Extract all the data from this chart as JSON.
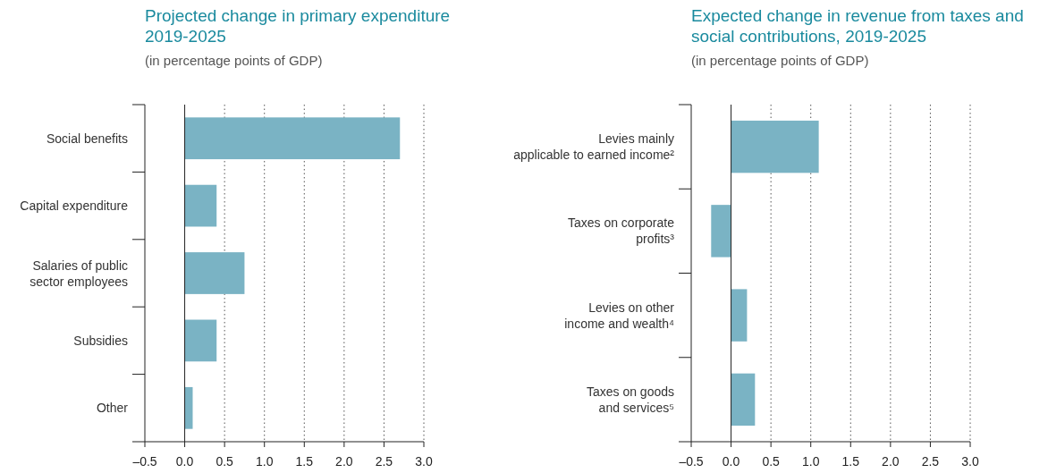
{
  "chart_data": [
    {
      "type": "bar",
      "orientation": "horizontal",
      "title": "Projected change in primary expenditure 2019-2025",
      "subtitle": "(in percentage points of GDP)",
      "categories": [
        "Social benefits",
        "Capital expenditure",
        "Salaries of public sector employees",
        "Subsidies",
        "Other"
      ],
      "values": [
        2.7,
        0.4,
        0.75,
        0.4,
        0.1
      ],
      "color": "#7ab3c4",
      "xlim": [
        -0.5,
        3.0
      ],
      "xticks": [
        {
          "value": -0.5,
          "label": "–0.5"
        },
        {
          "value": 0,
          "label": "0.0"
        },
        {
          "value": 0.5,
          "label": "0.5"
        },
        {
          "value": 1,
          "label": "1.0"
        },
        {
          "value": 1.5,
          "label": "1.5"
        },
        {
          "value": 2,
          "label": "2.0"
        },
        {
          "value": 2.5,
          "label": "2.5"
        },
        {
          "value": 3,
          "label": "3.0"
        }
      ],
      "grid": "x"
    },
    {
      "type": "bar",
      "orientation": "horizontal",
      "title": "Expected change in revenue from taxes and social contributions, 2019-2025",
      "subtitle": "(in percentage points of GDP)",
      "categories": [
        "Levies mainly applicable to earned income²",
        "Taxes on corporate profits³",
        "Levies on other income and wealth⁴",
        "Taxes on goods and services⁵"
      ],
      "values": [
        1.1,
        -0.25,
        0.2,
        0.3
      ],
      "color": "#7ab3c4",
      "xlim": [
        -0.5,
        3.0
      ],
      "xticks": [
        {
          "value": -0.5,
          "label": "–0.5"
        },
        {
          "value": 0,
          "label": "0.0"
        },
        {
          "value": 0.5,
          "label": "0.5"
        },
        {
          "value": 1,
          "label": "1.0"
        },
        {
          "value": 1.5,
          "label": "1.5"
        },
        {
          "value": 2,
          "label": "2.0"
        },
        {
          "value": 2.5,
          "label": "2.5"
        },
        {
          "value": 3,
          "label": "3.0"
        }
      ],
      "grid": "x"
    }
  ]
}
